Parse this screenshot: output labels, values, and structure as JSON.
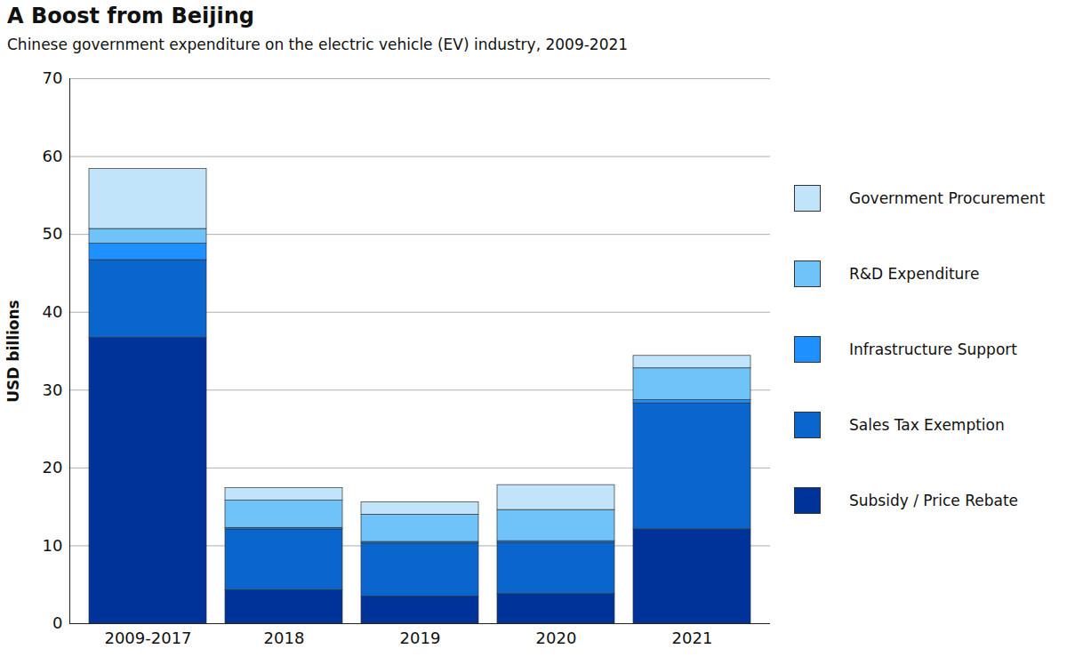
{
  "chart_data": {
    "type": "bar",
    "title": "A Boost from Beijing",
    "subtitle": "Chinese government expenditure on the electric vehicle (EV) industry, 2009-2021",
    "ylabel": "USD billions",
    "categories": [
      "2009-2017",
      "2018",
      "2019",
      "2020",
      "2021"
    ],
    "series": [
      {
        "name": "Subsidy / Price Rebate",
        "color": "#00339a",
        "values": [
          36.7,
          4.3,
          3.5,
          3.8,
          12.1
        ]
      },
      {
        "name": "Sales Tax Exemption",
        "color": "#0a66cc",
        "values": [
          10.0,
          7.8,
          6.8,
          6.6,
          16.2
        ]
      },
      {
        "name": "Infrastructure Support",
        "color": "#1e90ff",
        "values": [
          2.1,
          0.2,
          0.2,
          0.2,
          0.4
        ]
      },
      {
        "name": "R&D Expenditure",
        "color": "#6fc3f8",
        "values": [
          1.9,
          3.5,
          3.5,
          4.0,
          4.1
        ]
      },
      {
        "name": "Government Procurement",
        "color": "#c2e4fb",
        "values": [
          7.7,
          1.6,
          1.6,
          3.2,
          1.6
        ]
      }
    ],
    "ylim": [
      0,
      70
    ],
    "yticks": [
      0,
      10,
      20,
      30,
      40,
      50,
      60,
      70
    ],
    "grid": true,
    "stacked": true,
    "legend": "right"
  }
}
